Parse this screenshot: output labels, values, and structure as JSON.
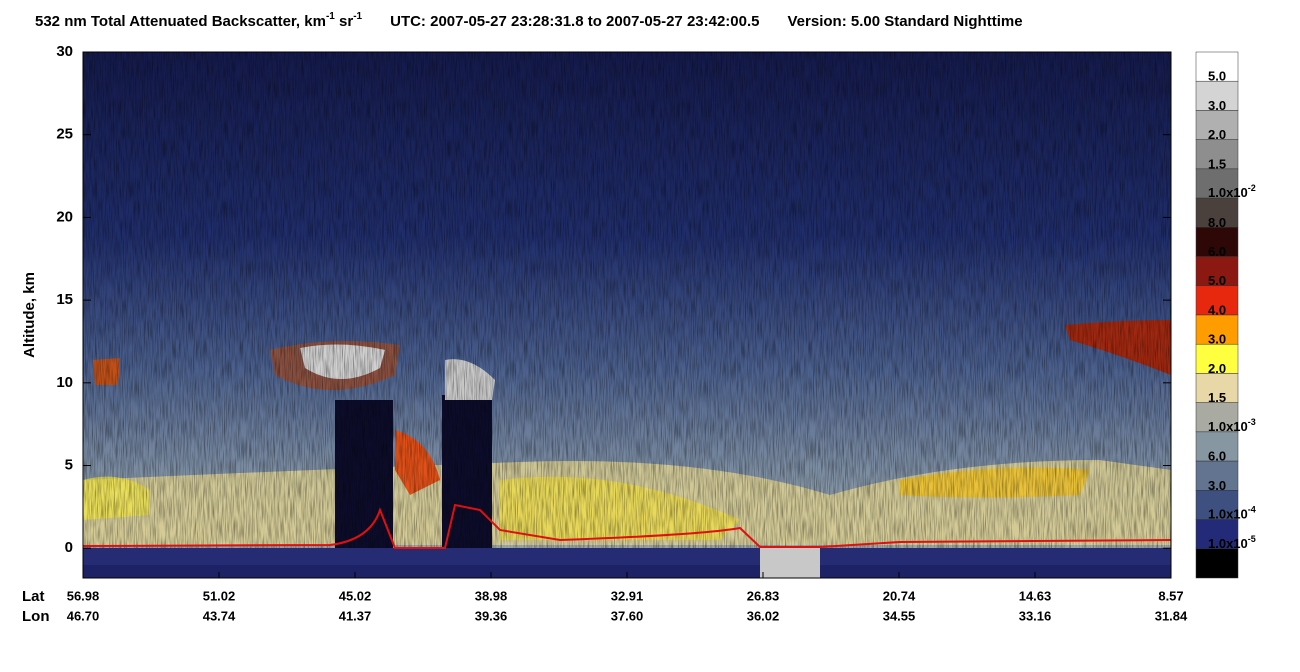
{
  "chart_data": {
    "type": "curtain",
    "title_parts": [
      "532 nm Total Attenuated Backscatter, km",
      "-1",
      " sr",
      "-1"
    ],
    "utc": "UTC:  2007-05-27 23:28:31.8  to  2007-05-27 23:42:00.5",
    "version": "Version: 5.00  Standard  Nighttime",
    "y_label": "Altitude, km",
    "ylim": [
      -1.8,
      30
    ],
    "yticks": [
      0,
      5,
      10,
      15,
      20,
      25,
      30
    ],
    "lat_label": "Lat",
    "lon_label": "Lon",
    "lat": [
      "56.98",
      "51.02",
      "45.02",
      "38.98",
      "32.91",
      "26.83",
      "20.74",
      "14.63",
      "8.57"
    ],
    "lon": [
      "46.70",
      "43.74",
      "41.37",
      "39.36",
      "37.60",
      "36.02",
      "34.55",
      "33.16",
      "31.84"
    ],
    "colorbar_colors": [
      "#ffffff",
      "#d4d4d4",
      "#b0b0b0",
      "#8e8e8e",
      "#6e6e6e",
      "#4a403c",
      "#2e0806",
      "#8c1812",
      "#e8280e",
      "#ff9c00",
      "#ffff40",
      "#e8d8a8",
      "#a9aba3",
      "#8797a2",
      "#627490",
      "#3e5080",
      "#232a78",
      "#000000"
    ],
    "colorbar_labels": [
      "5.0",
      "3.0",
      "2.0",
      "1.5",
      {
        "base": "1.0x10",
        "exp": "-2"
      },
      "8.0",
      "6.0",
      "5.0",
      "4.0",
      "3.0",
      "2.0",
      "1.5",
      {
        "base": "1.0x10",
        "exp": "-3"
      },
      "6.0",
      "3.0",
      {
        "base": "1.0x10",
        "exp": "-4"
      },
      {
        "base": "1.0x10",
        "exp": "-5"
      }
    ]
  }
}
